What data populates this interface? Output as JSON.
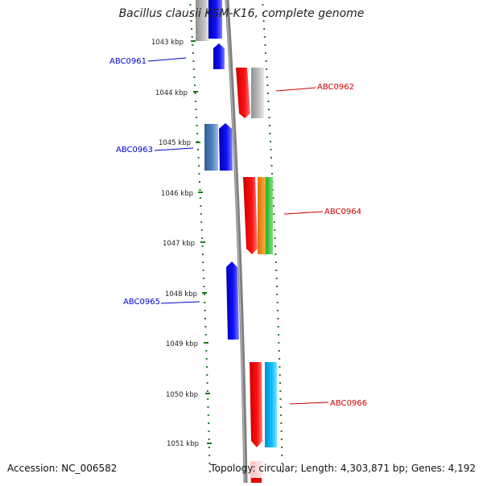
{
  "title": "Bacillus clausii KSM-K16, complete genome",
  "accession_label": "Accession: NC_006582",
  "summary": "Topology: circular; Length: 4,303,871 bp; Genes: 4,192",
  "ticks": [
    {
      "label": "1043 kbp"
    },
    {
      "label": "1044 kbp"
    },
    {
      "label": "1045 kbp"
    },
    {
      "label": "1046 kbp"
    },
    {
      "label": "1047 kbp"
    },
    {
      "label": "1048 kbp"
    },
    {
      "label": "1049 kbp"
    },
    {
      "label": "1050 kbp"
    },
    {
      "label": "1051 kbp"
    }
  ],
  "gene_labels": [
    {
      "name": "ABC0961",
      "strand": "minus",
      "color": "#0000cc"
    },
    {
      "name": "ABC0962",
      "strand": "plus",
      "color": "#cc0000"
    },
    {
      "name": "ABC0963",
      "strand": "minus",
      "color": "#0000cc"
    },
    {
      "name": "ABC0964",
      "strand": "plus",
      "color": "#cc0000"
    },
    {
      "name": "ABC0965",
      "strand": "minus",
      "color": "#0000cc"
    },
    {
      "name": "ABC0966",
      "strand": "plus",
      "color": "#cc0000"
    }
  ],
  "colors": {
    "backbone": "#808080",
    "dots": "#1a7a1a",
    "minus_label": "#0000cc",
    "plus_label": "#cc0000",
    "gene_blue": "#0000ee",
    "gene_steel": "#3f6fa8",
    "gene_grey": "#b0b0b0",
    "gene_red": "#ee0000",
    "gene_orange": "#ff8c00",
    "gene_green": "#33cc33",
    "gene_cyan": "#00aaee",
    "gene_pink": "#ffcccc"
  }
}
